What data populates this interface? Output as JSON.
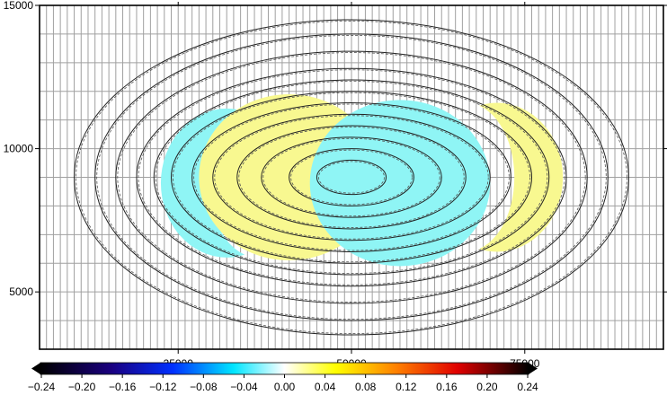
{
  "chart_data": {
    "type": "heatmap",
    "title": "",
    "xlabel": "",
    "ylabel": "",
    "xlim": [
      5000,
      95000
    ],
    "ylim": [
      3000,
      15000
    ],
    "x_ticks": [
      {
        "value": 25000,
        "label": "25000"
      },
      {
        "value": 50000,
        "label": "50000"
      },
      {
        "value": 75000,
        "label": "75000"
      }
    ],
    "y_ticks": [
      {
        "value": 5000,
        "label": "5000"
      },
      {
        "value": 10000,
        "label": "10000"
      },
      {
        "value": 15000,
        "label": "15000"
      }
    ],
    "grid": true,
    "grid_spacing": 1000,
    "contours": {
      "center": [
        50000,
        9000
      ],
      "shape": "ellipse",
      "semi_axes": [
        [
          5000,
          600
        ],
        [
          9000,
          1000
        ],
        [
          13000,
          1400
        ],
        [
          16500,
          1800
        ],
        [
          20000,
          2200
        ],
        [
          23000,
          2600
        ],
        [
          26000,
          3000
        ],
        [
          28500,
          3400
        ],
        [
          31000,
          3800
        ],
        [
          34000,
          4400
        ],
        [
          37000,
          5000
        ],
        [
          40000,
          5500
        ]
      ]
    },
    "regions": [
      {
        "value": -0.05,
        "color": "#8ff5f5",
        "center": [
          32000,
          8800
        ],
        "radii": [
          9500,
          2600
        ],
        "cut_center": [
          36500,
          8800
        ],
        "cut_radii": [
          7000,
          2600
        ]
      },
      {
        "value": 0.05,
        "color": "#f8f890",
        "center": [
          41000,
          9000
        ],
        "radii": [
          13000,
          2900
        ],
        "clip": "inside-outer-contour"
      },
      {
        "value": -0.05,
        "color": "#8ff5f5",
        "center": [
          57000,
          8800
        ],
        "radii": [
          13000,
          2900
        ],
        "clip": "inside-outer-contour"
      },
      {
        "value": 0.05,
        "color": "#f8f890",
        "center": [
          71000,
          9000
        ],
        "radii": [
          9500,
          2600
        ],
        "cut_center": [
          66500,
          9000
        ],
        "cut_radii": [
          7000,
          2600
        ]
      }
    ],
    "colorbar": {
      "min": -0.24,
      "max": 0.24,
      "ticks": [
        "−0.24",
        "−0.20",
        "−0.16",
        "−0.12",
        "−0.08",
        "−0.04",
        "0.00",
        "0.04",
        "0.08",
        "0.12",
        "0.16",
        "0.20",
        "0.24"
      ],
      "stops": [
        {
          "value": -0.24,
          "color": "#000000"
        },
        {
          "value": -0.17,
          "color": "#1a0080"
        },
        {
          "value": -0.11,
          "color": "#0030ff"
        },
        {
          "value": -0.05,
          "color": "#00e6ff"
        },
        {
          "value": 0.0,
          "color": "#ffffff"
        },
        {
          "value": 0.05,
          "color": "#ffff00"
        },
        {
          "value": 0.11,
          "color": "#ff8000"
        },
        {
          "value": 0.17,
          "color": "#e00000"
        },
        {
          "value": 0.24,
          "color": "#000000"
        }
      ]
    }
  }
}
